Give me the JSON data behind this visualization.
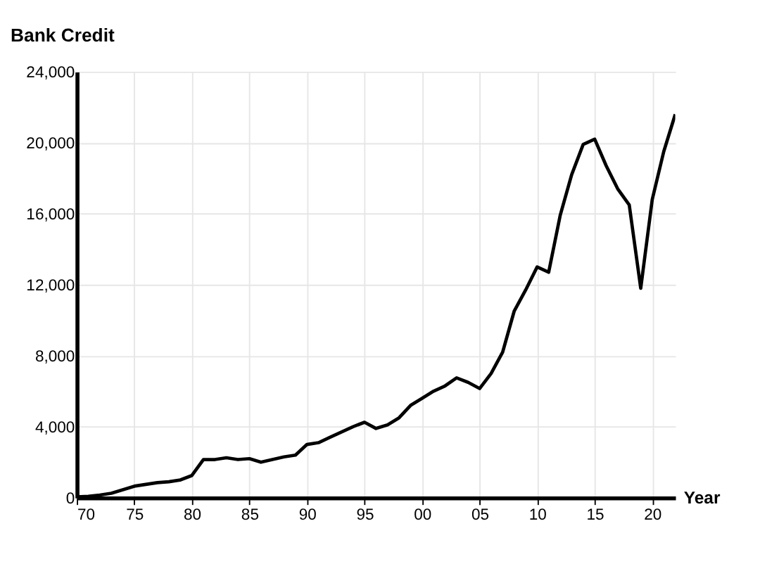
{
  "chart_data": {
    "type": "line",
    "title": "Bank Credit",
    "xlabel": "Year",
    "x": [
      1970,
      1971,
      1972,
      1973,
      1974,
      1975,
      1976,
      1977,
      1978,
      1979,
      1980,
      1981,
      1982,
      1983,
      1984,
      1985,
      1986,
      1987,
      1988,
      1989,
      1990,
      1991,
      1992,
      1993,
      1994,
      1995,
      1996,
      1997,
      1998,
      1999,
      2000,
      2001,
      2002,
      2003,
      2004,
      2005,
      2006,
      2007,
      2008,
      2009,
      2010,
      2011,
      2012,
      2013,
      2014,
      2015,
      2016,
      2017,
      2018,
      2019,
      2020,
      2021,
      2022
    ],
    "series": [
      {
        "color": "#000000",
        "values": [
          50,
          80,
          150,
          250,
          450,
          650,
          750,
          850,
          900,
          1000,
          1250,
          2150,
          2150,
          2250,
          2150,
          2200,
          2000,
          2150,
          2300,
          2400,
          3000,
          3100,
          3400,
          3700,
          4000,
          4250,
          3900,
          4100,
          4500,
          5200,
          5600,
          6000,
          6300,
          6750,
          6500,
          6150,
          7000,
          8200,
          10500,
          11700,
          13000,
          12700,
          15900,
          18200,
          19900,
          20200,
          18700,
          17400,
          16500,
          11800,
          16800,
          19500,
          21600
        ]
      }
    ],
    "xlim": [
      1970,
      2022
    ],
    "xticks": [
      {
        "value": 1970,
        "label": "70"
      },
      {
        "value": 1975,
        "label": "75"
      },
      {
        "value": 1980,
        "label": "80"
      },
      {
        "value": 1985,
        "label": "85"
      },
      {
        "value": 1990,
        "label": "90"
      },
      {
        "value": 1995,
        "label": "95"
      },
      {
        "value": 2000,
        "label": "00"
      },
      {
        "value": 2005,
        "label": "05"
      },
      {
        "value": 2010,
        "label": "10"
      },
      {
        "value": 2015,
        "label": "15"
      },
      {
        "value": 2020,
        "label": "20"
      }
    ],
    "ylim": [
      0,
      24000
    ],
    "yticks": [
      {
        "value": 0,
        "label": "0"
      },
      {
        "value": 4000,
        "label": "4,000"
      },
      {
        "value": 8000,
        "label": "8,000"
      },
      {
        "value": 12000,
        "label": "12,000"
      },
      {
        "value": 16000,
        "label": "16,000"
      },
      {
        "value": 20000,
        "label": "20,000"
      },
      {
        "value": 24000,
        "label": "24,000"
      }
    ],
    "grid": true,
    "marker": "none",
    "line_style": "solid"
  }
}
